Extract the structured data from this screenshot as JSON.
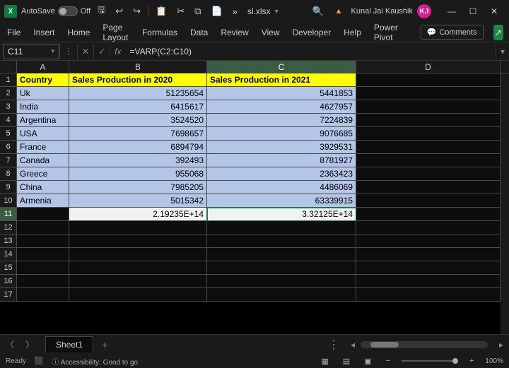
{
  "titlebar": {
    "autosave_label": "AutoSave",
    "autosave_state": "Off",
    "filename": "sl.xlsx",
    "username": "Kunal Jai Kaushik",
    "avatar_initials": "KJ",
    "avatar_bg": "#d81b8f"
  },
  "ribbon": {
    "tabs": [
      "File",
      "Insert",
      "Home",
      "Page Layout",
      "Formulas",
      "Data",
      "Review",
      "View",
      "Developer",
      "Help",
      "Power Pivot"
    ],
    "comments_label": "Comments"
  },
  "formula_bar": {
    "cell_ref": "C11",
    "formula": "=VARP(C2:C10)"
  },
  "columns": {
    "widths": {
      "A": 74,
      "B": 195,
      "C": 211,
      "D": 204
    },
    "headers": [
      "A",
      "B",
      "C",
      "D"
    ],
    "selected": "C"
  },
  "table": {
    "header_bg": "#ffff00",
    "data_bg": "#b4c6e7",
    "selected_bg": "#f2f2f2",
    "highlight_border": "#d62020",
    "headers": {
      "A": "Country",
      "B": "Sales Production in 2020",
      "C": "Sales Production in 2021"
    },
    "rows": [
      {
        "A": "Uk",
        "B": "51235654",
        "C": "5441853"
      },
      {
        "A": "India",
        "B": "6415617",
        "C": "4627957"
      },
      {
        "A": "Argentina",
        "B": "3524520",
        "C": "7224839"
      },
      {
        "A": "USA",
        "B": "7698657",
        "C": "9076685"
      },
      {
        "A": "France",
        "B": "6894794",
        "C": "3929531"
      },
      {
        "A": "Canada",
        "B": "392493",
        "C": "8781927"
      },
      {
        "A": "Greece",
        "B": "955068",
        "C": "2363423"
      },
      {
        "A": "China",
        "B": "7985205",
        "C": "4486069"
      },
      {
        "A": "Armenia",
        "B": "5015342",
        "C": "63339915"
      }
    ],
    "result_row": {
      "B": "2.19235E+14",
      "C": "3.32125E+14"
    },
    "selected_cell": "C11",
    "highlight_cell": "C11",
    "empty_rows": [
      12,
      13,
      14,
      15,
      16,
      17
    ]
  },
  "sheets": {
    "active": "Sheet1"
  },
  "statusbar": {
    "status": "Ready",
    "accessibility": "Accessibility: Good to go",
    "zoom": "100%"
  }
}
